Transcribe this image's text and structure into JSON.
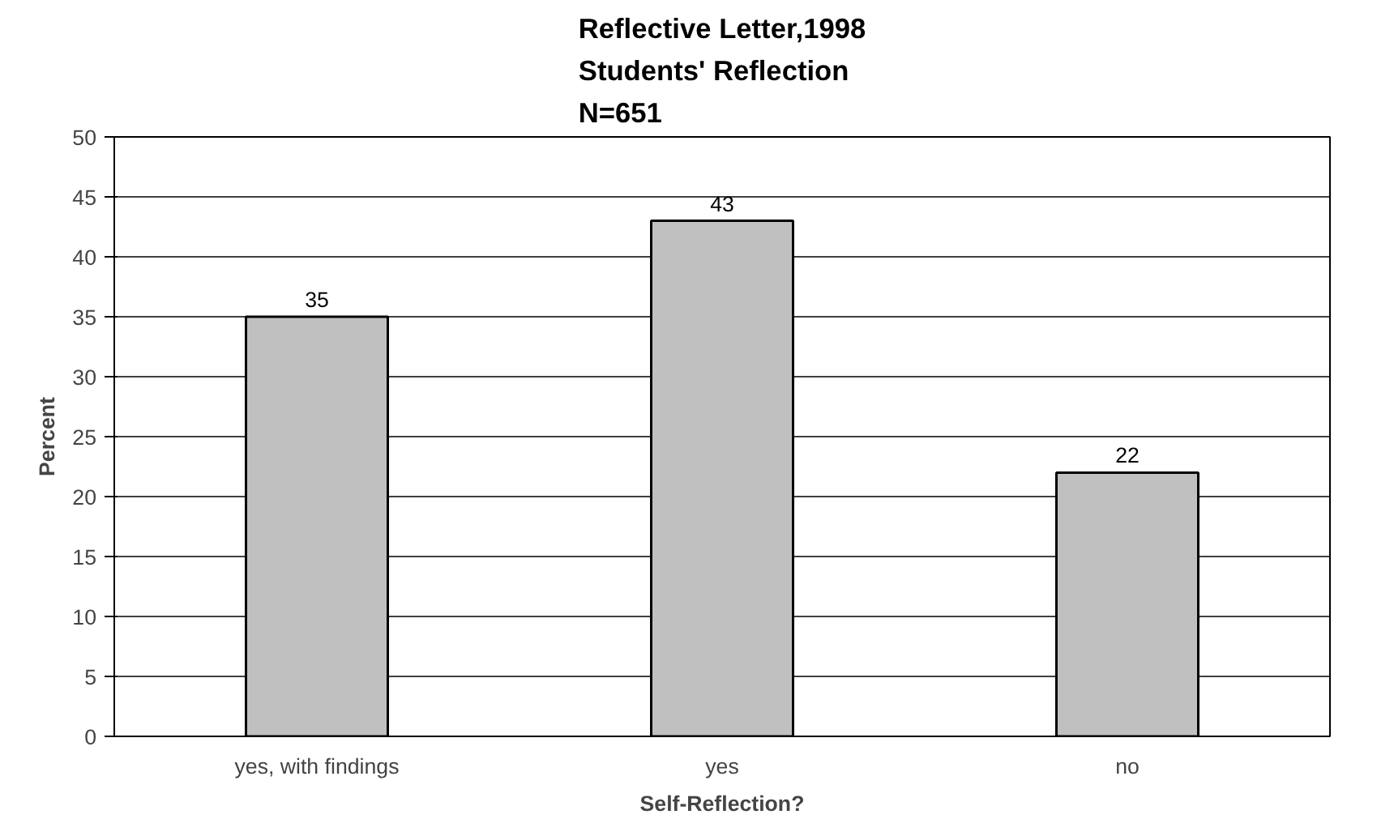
{
  "chart_data": {
    "type": "bar",
    "title": "Reflective Letter,1998\nStudents' Reflection\nN=651",
    "xlabel": "Self-Reflection?",
    "ylabel": "Percent",
    "categories": [
      "yes, with findings",
      "yes",
      "no"
    ],
    "values": [
      35,
      43,
      22
    ],
    "color": "#c0c0c0",
    "data_labels": true,
    "ylim": [
      0,
      50
    ],
    "yticks": [
      0,
      5,
      10,
      15,
      20,
      25,
      30,
      35,
      40,
      45,
      50
    ],
    "grid": "y"
  }
}
